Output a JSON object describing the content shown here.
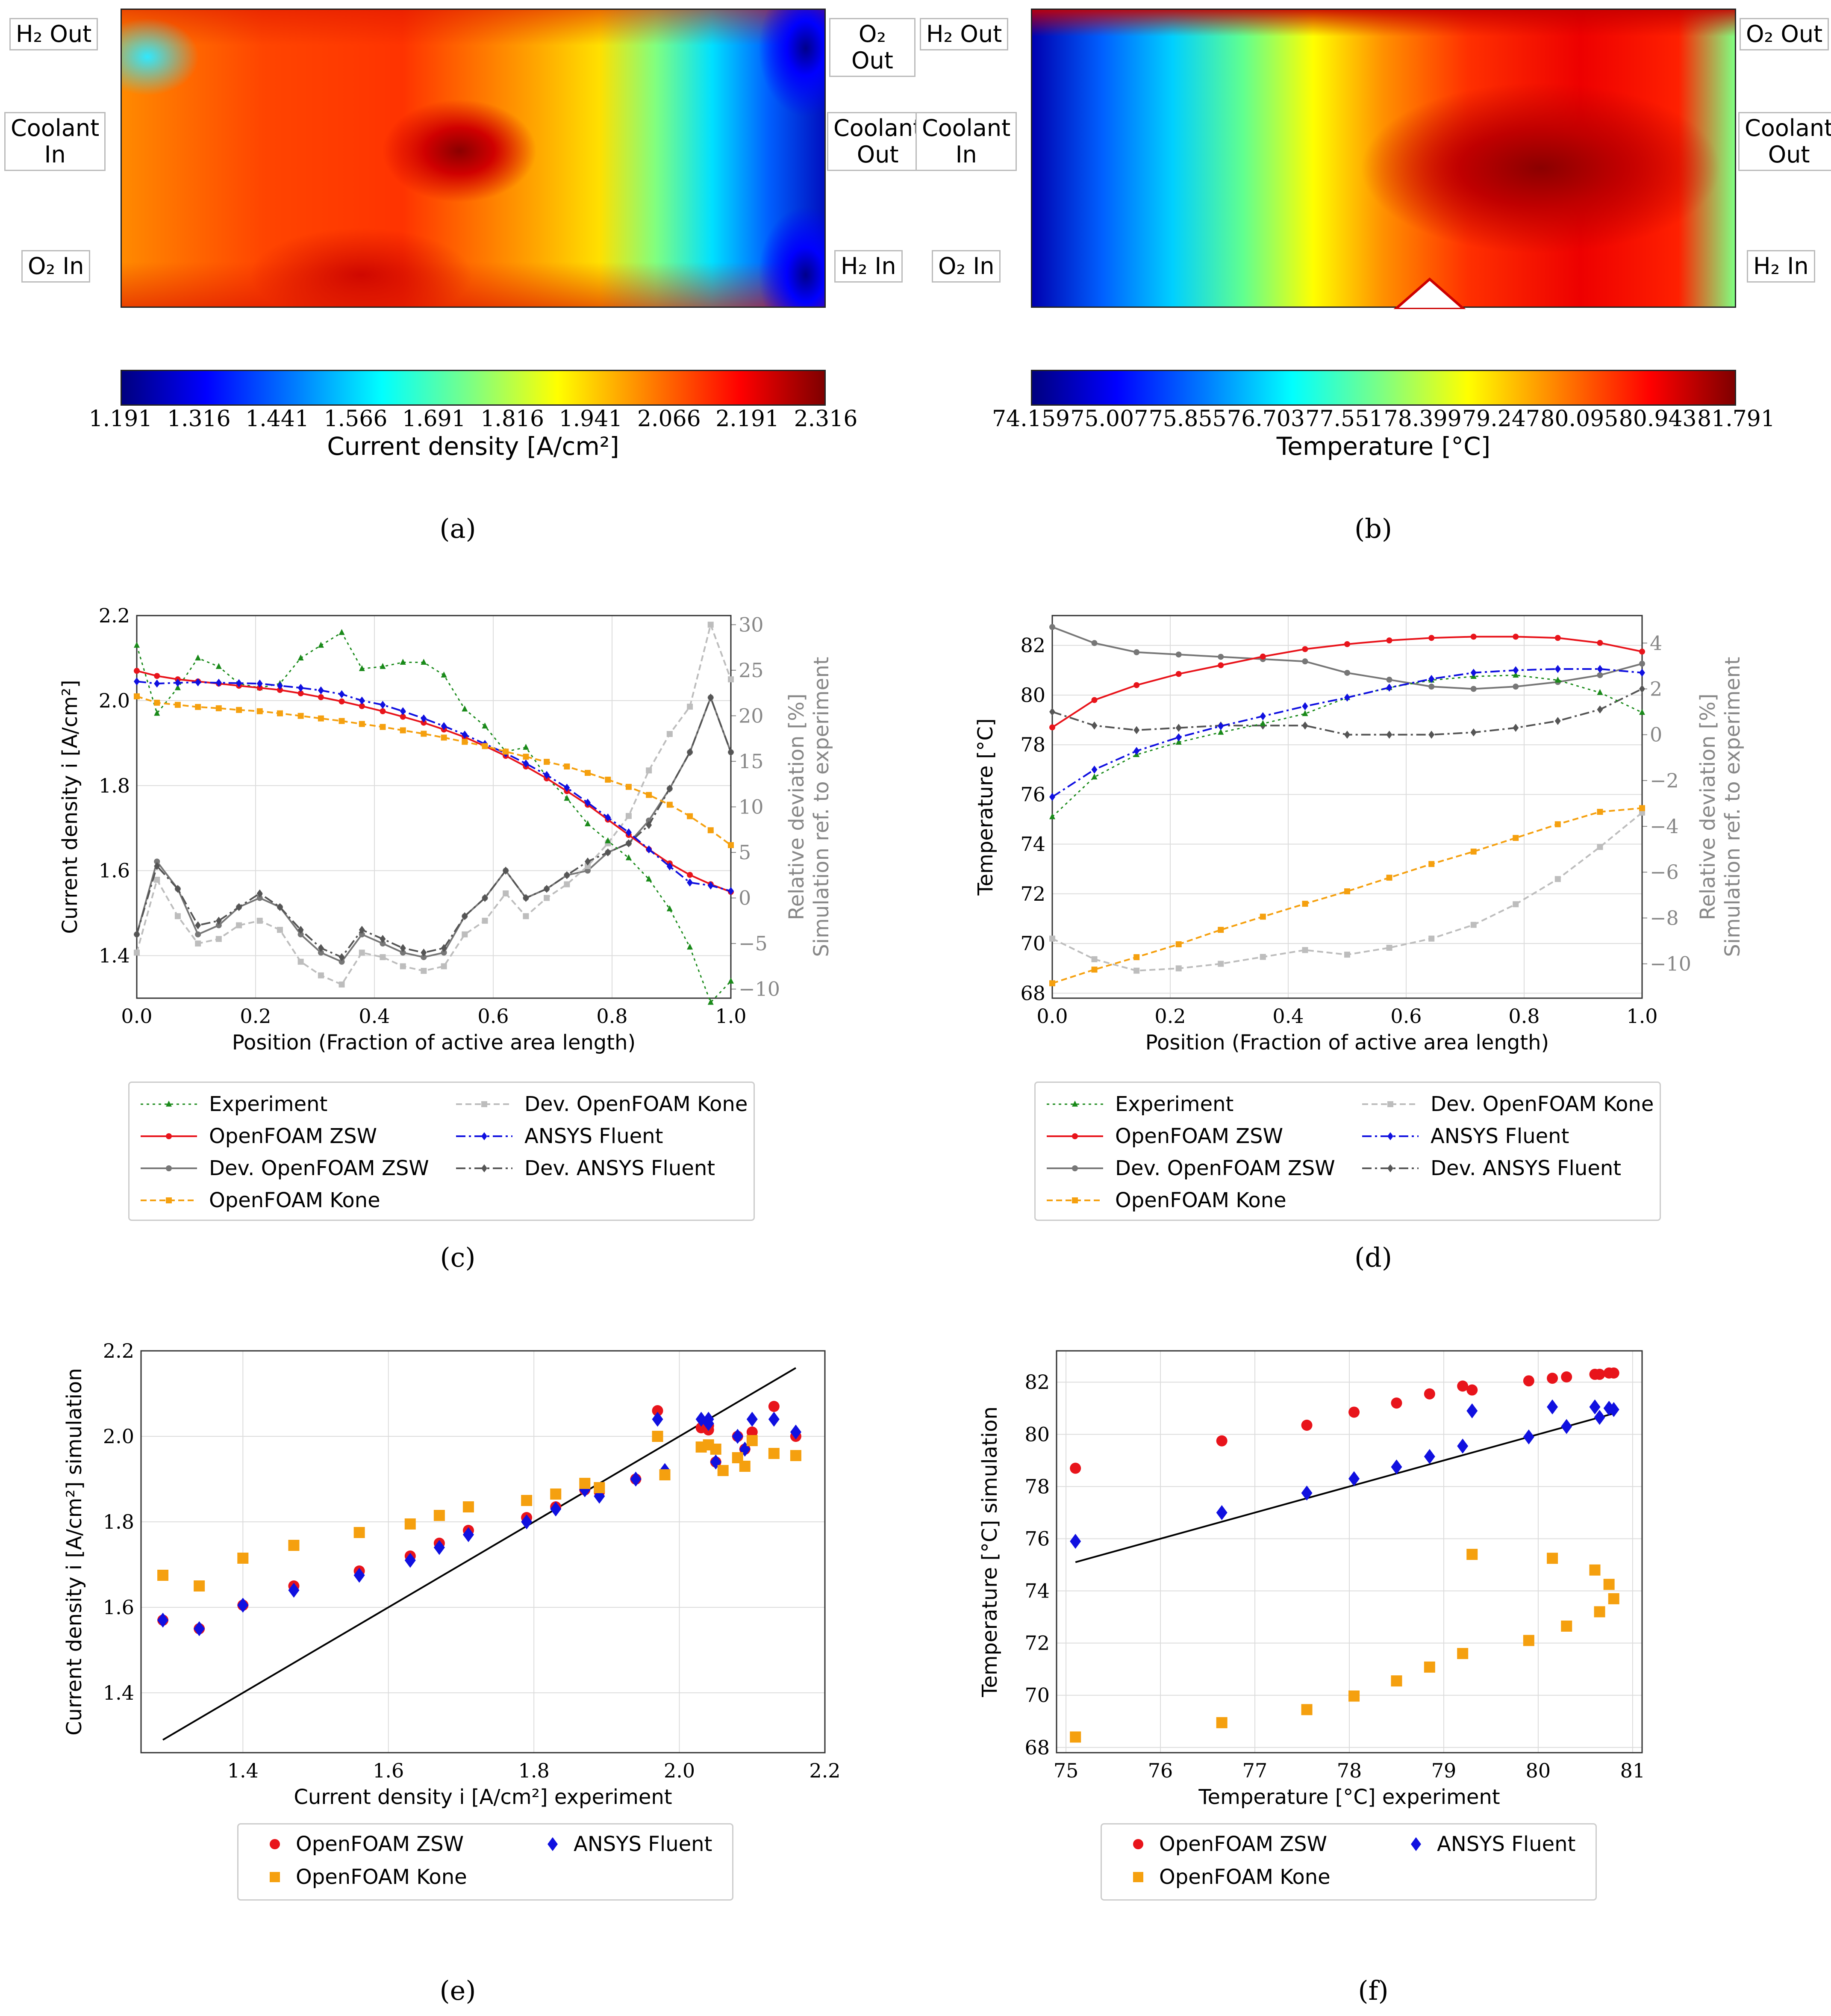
{
  "panels": {
    "a": "(a)",
    "b": "(b)",
    "c": "(c)",
    "d": "(d)",
    "e": "(e)",
    "f": "(f)"
  },
  "map_a": {
    "ports": {
      "h2_out": "H₂ Out",
      "coolant_in_1": "Coolant",
      "coolant_in_2": "In",
      "o2_in": "O₂ In",
      "o2_out": "O₂ Out",
      "coolant_out_1": "Coolant",
      "coolant_out_2": "Out",
      "h2_in": "H₂ In"
    },
    "colorbar": {
      "ticks": [
        "1.191",
        "1.316",
        "1.441",
        "1.566",
        "1.691",
        "1.816",
        "1.941",
        "2.066",
        "2.191",
        "2.316"
      ],
      "label": "Current density [A/cm²]"
    }
  },
  "map_b": {
    "ports": {
      "h2_out": "H₂ Out",
      "coolant_in_1": "Coolant",
      "coolant_in_2": "In",
      "o2_in": "O₂ In",
      "o2_out": "O₂ Out",
      "coolant_out_1": "Coolant",
      "coolant_out_2": "Out",
      "h2_in": "H₂ In"
    },
    "colorbar": {
      "ticks": [
        "74.159",
        "75.007",
        "75.855",
        "76.703",
        "77.551",
        "78.399",
        "79.247",
        "80.095",
        "80.943",
        "81.791"
      ],
      "label": "Temperature [°C]"
    }
  },
  "legend_full": {
    "experiment": "Experiment",
    "openfoam_zsw": "OpenFOAM ZSW",
    "dev_openfoam_zsw": "Dev. OpenFOAM ZSW",
    "openfoam_kone": "OpenFOAM Kone",
    "dev_openfoam_kone": "Dev. OpenFOAM Kone",
    "ansys_fluent": "ANSYS Fluent",
    "dev_ansys_fluent": "Dev. ANSYS Fluent"
  },
  "colors": {
    "experiment": "#1a8a1a",
    "openfoam_zsw": "#e8141b",
    "dev_openfoam_zsw": "#777777",
    "openfoam_kone": "#f5a00f",
    "dev_openfoam_kone": "#bdbdbd",
    "ansys_fluent": "#1010e0",
    "dev_ansys_fluent": "#555555"
  },
  "chart_data": [
    {
      "id": "c",
      "type": "line",
      "xlabel": "Position (Fraction of active area length)",
      "ylabel": "Current density i [A/cm²]",
      "y2label_1": "Relative deviation [%]",
      "y2label_2": "Simulation ref. to experiment",
      "xlim": [
        0,
        1
      ],
      "ylim": [
        1.3,
        2.2
      ],
      "y2lim": [
        -11,
        31
      ],
      "xticks": [
        0.0,
        0.2,
        0.4,
        0.6,
        0.8,
        1.0
      ],
      "xtick_labels": [
        "0.0",
        "0.2",
        "0.4",
        "0.6",
        "0.8",
        "1.0"
      ],
      "yticks": [
        1.4,
        1.6,
        1.8,
        2.0,
        2.2
      ],
      "ytick_labels": [
        "1.4",
        "1.6",
        "1.8",
        "2.0",
        "2.2"
      ],
      "y2ticks": [
        -10,
        -5,
        0,
        5,
        10,
        15,
        20,
        25,
        30
      ],
      "y2tick_labels": [
        "−10",
        "−5",
        "0",
        "5",
        "10",
        "15",
        "20",
        "25",
        "30"
      ],
      "x": [
        0.0,
        0.034,
        0.069,
        0.103,
        0.138,
        0.172,
        0.207,
        0.241,
        0.276,
        0.31,
        0.345,
        0.379,
        0.414,
        0.448,
        0.483,
        0.517,
        0.552,
        0.586,
        0.621,
        0.655,
        0.69,
        0.724,
        0.759,
        0.793,
        0.828,
        0.862,
        0.897,
        0.931,
        0.966,
        1.0
      ],
      "series": [
        {
          "key": "experiment",
          "axis": "y",
          "values": [
            2.13,
            1.97,
            2.03,
            2.1,
            2.08,
            2.04,
            2.03,
            2.04,
            2.1,
            2.13,
            2.16,
            2.075,
            2.08,
            2.09,
            2.09,
            2.06,
            1.98,
            1.94,
            1.88,
            1.89,
            1.82,
            1.77,
            1.71,
            1.67,
            1.63,
            1.58,
            1.51,
            1.42,
            1.29,
            1.34
          ]
        },
        {
          "key": "openfoam_zsw",
          "axis": "y",
          "values": [
            2.07,
            2.058,
            2.05,
            2.045,
            2.04,
            2.035,
            2.03,
            2.025,
            2.017,
            2.008,
            1.998,
            1.987,
            1.975,
            1.962,
            1.948,
            1.932,
            1.914,
            1.893,
            1.87,
            1.845,
            1.817,
            1.787,
            1.755,
            1.72,
            1.684,
            1.65,
            1.617,
            1.59,
            1.568,
            1.55
          ]
        },
        {
          "key": "ansys_fluent",
          "axis": "y",
          "values": [
            2.045,
            2.04,
            2.042,
            2.043,
            2.042,
            2.041,
            2.04,
            2.035,
            2.03,
            2.024,
            2.015,
            2.0,
            1.99,
            1.975,
            1.958,
            1.94,
            1.92,
            1.898,
            1.876,
            1.852,
            1.825,
            1.795,
            1.76,
            1.725,
            1.69,
            1.65,
            1.61,
            1.572,
            1.565,
            1.552
          ]
        },
        {
          "key": "openfoam_kone",
          "axis": "y",
          "values": [
            2.01,
            1.995,
            1.99,
            1.985,
            1.982,
            1.978,
            1.975,
            1.97,
            1.964,
            1.958,
            1.952,
            1.945,
            1.938,
            1.93,
            1.922,
            1.913,
            1.903,
            1.893,
            1.88,
            1.868,
            1.856,
            1.845,
            1.83,
            1.814,
            1.797,
            1.778,
            1.755,
            1.728,
            1.695,
            1.66
          ]
        },
        {
          "key": "dev_openfoam_zsw",
          "axis": "y2",
          "values": [
            -4,
            4,
            1,
            -4,
            -3,
            -1,
            0,
            -1,
            -4,
            -6,
            -7,
            -4,
            -5,
            -6,
            -6.5,
            -6,
            -2,
            0,
            3,
            0,
            1,
            2.5,
            3,
            5,
            6,
            8.5,
            12,
            16,
            22,
            16
          ]
        },
        {
          "key": "dev_openfoam_kone",
          "axis": "y2",
          "values": [
            -6,
            2,
            -2,
            -5,
            -4.5,
            -3,
            -2.5,
            -3.5,
            -7,
            -8.5,
            -9.5,
            -6,
            -6.5,
            -7.5,
            -8,
            -7.5,
            -4,
            -2.5,
            0.5,
            -2,
            0,
            1.5,
            3.5,
            6,
            9,
            14,
            18,
            21,
            30,
            24
          ]
        },
        {
          "key": "dev_ansys_fluent",
          "axis": "y2",
          "values": [
            -4,
            3.5,
            1,
            -3,
            -2.5,
            -1,
            0.5,
            -1,
            -3.5,
            -5.5,
            -6.5,
            -3.5,
            -4.5,
            -5.5,
            -6,
            -5.5,
            -2,
            0,
            3,
            0,
            1,
            2.5,
            4,
            5,
            6,
            8,
            12,
            16,
            22,
            16
          ]
        }
      ]
    },
    {
      "id": "d",
      "type": "line",
      "xlabel": "Position (Fraction of active area length)",
      "ylabel": "Temperature [°C]",
      "y2label_1": "Relative deviation [%]",
      "y2label_2": "Simulation ref. to experiment",
      "xlim": [
        0,
        1
      ],
      "ylim": [
        67.8,
        83.2
      ],
      "y2lim": [
        -11.5,
        5.2
      ],
      "xticks": [
        0.0,
        0.2,
        0.4,
        0.6,
        0.8,
        1.0
      ],
      "xtick_labels": [
        "0.0",
        "0.2",
        "0.4",
        "0.6",
        "0.8",
        "1.0"
      ],
      "yticks": [
        68,
        70,
        72,
        74,
        76,
        78,
        80,
        82
      ],
      "ytick_labels": [
        "68",
        "70",
        "72",
        "74",
        "76",
        "78",
        "80",
        "82"
      ],
      "y2ticks": [
        -10,
        -8,
        -6,
        -4,
        -2,
        0,
        2,
        4
      ],
      "y2tick_labels": [
        "−10",
        "−8",
        "−6",
        "−4",
        "−2",
        "0",
        "2",
        "4"
      ],
      "x": [
        0.0,
        0.0714,
        0.1429,
        0.2143,
        0.2857,
        0.3571,
        0.4286,
        0.5,
        0.5714,
        0.6429,
        0.7143,
        0.7857,
        0.8571,
        0.9286,
        1.0
      ],
      "series": [
        {
          "key": "experiment",
          "axis": "y",
          "values": [
            75.1,
            76.7,
            77.6,
            78.1,
            78.5,
            78.85,
            79.25,
            79.9,
            80.3,
            80.6,
            80.75,
            80.8,
            80.6,
            80.1,
            79.3
          ]
        },
        {
          "key": "openfoam_zsw",
          "axis": "y",
          "values": [
            78.7,
            79.8,
            80.4,
            80.85,
            81.2,
            81.55,
            81.85,
            82.05,
            82.2,
            82.3,
            82.35,
            82.35,
            82.3,
            82.1,
            81.75
          ]
        },
        {
          "key": "ansys_fluent",
          "axis": "y",
          "values": [
            75.9,
            77.0,
            77.75,
            78.3,
            78.75,
            79.15,
            79.55,
            79.9,
            80.3,
            80.65,
            80.9,
            81.0,
            81.05,
            81.05,
            80.9
          ]
        },
        {
          "key": "openfoam_kone",
          "axis": "y",
          "values": [
            68.4,
            68.95,
            69.45,
            69.97,
            70.55,
            71.08,
            71.6,
            72.1,
            72.65,
            73.2,
            73.7,
            74.25,
            74.8,
            75.3,
            75.45
          ]
        },
        {
          "key": "dev_openfoam_zsw",
          "axis": "y2",
          "values": [
            4.7,
            4.0,
            3.6,
            3.5,
            3.4,
            3.3,
            3.2,
            2.7,
            2.4,
            2.1,
            2.0,
            2.1,
            2.3,
            2.6,
            3.1
          ]
        },
        {
          "key": "dev_openfoam_kone",
          "axis": "y2",
          "values": [
            -8.9,
            -9.8,
            -10.3,
            -10.2,
            -10.0,
            -9.7,
            -9.4,
            -9.6,
            -9.3,
            -8.9,
            -8.3,
            -7.4,
            -6.3,
            -4.9,
            -3.4
          ]
        },
        {
          "key": "dev_ansys_fluent",
          "axis": "y2",
          "values": [
            1.0,
            0.4,
            0.2,
            0.3,
            0.4,
            0.4,
            0.4,
            0.0,
            0.0,
            0.0,
            0.1,
            0.3,
            0.6,
            1.1,
            2.0
          ]
        }
      ]
    },
    {
      "id": "e",
      "type": "scatter",
      "xlabel": "Current density i [A/cm²] experiment",
      "ylabel": "Current density i [A/cm²] simulation",
      "xlim": [
        1.26,
        2.2
      ],
      "ylim": [
        1.26,
        2.2
      ],
      "xticks": [
        1.4,
        1.6,
        1.8,
        2.0,
        2.2
      ],
      "xtick_labels": [
        "1.4",
        "1.6",
        "1.8",
        "2.0",
        "2.2"
      ],
      "yticks": [
        1.4,
        1.6,
        1.8,
        2.0,
        2.2
      ],
      "ytick_labels": [
        "1.4",
        "1.6",
        "1.8",
        "2.0",
        "2.2"
      ],
      "reference_line": [
        [
          1.29,
          1.29
        ],
        [
          2.16,
          2.16
        ]
      ],
      "series": [
        {
          "key": "openfoam_zsw",
          "x": [
            1.29,
            1.34,
            1.4,
            1.47,
            1.56,
            1.63,
            1.67,
            1.71,
            1.79,
            1.83,
            1.87,
            1.89,
            1.94,
            1.97,
            2.03,
            2.04,
            2.04,
            2.05,
            2.08,
            2.09,
            2.1,
            2.13,
            2.16
          ],
          "values": [
            1.57,
            1.55,
            1.605,
            1.65,
            1.685,
            1.72,
            1.75,
            1.78,
            1.81,
            1.835,
            1.875,
            1.87,
            1.9,
            2.06,
            2.02,
            2.025,
            2.015,
            1.94,
            2.0,
            1.97,
            2.01,
            2.07,
            2.0
          ]
        },
        {
          "key": "ansys_fluent",
          "x": [
            1.29,
            1.34,
            1.4,
            1.47,
            1.56,
            1.63,
            1.67,
            1.71,
            1.79,
            1.83,
            1.87,
            1.89,
            1.94,
            1.97,
            1.98,
            2.03,
            2.04,
            2.04,
            2.05,
            2.08,
            2.09,
            2.1,
            2.13,
            2.16
          ],
          "values": [
            1.57,
            1.55,
            1.605,
            1.64,
            1.675,
            1.71,
            1.74,
            1.77,
            1.8,
            1.83,
            1.875,
            1.86,
            1.9,
            2.04,
            1.92,
            2.04,
            2.04,
            2.03,
            1.94,
            2.0,
            1.97,
            2.04,
            2.04,
            2.01
          ]
        },
        {
          "key": "openfoam_kone",
          "x": [
            1.29,
            1.34,
            1.4,
            1.47,
            1.56,
            1.63,
            1.67,
            1.71,
            1.79,
            1.83,
            1.87,
            1.89,
            1.97,
            1.98,
            2.03,
            2.04,
            2.05,
            2.06,
            2.08,
            2.09,
            2.1,
            2.13,
            2.16
          ],
          "values": [
            1.675,
            1.65,
            1.715,
            1.745,
            1.775,
            1.795,
            1.815,
            1.835,
            1.85,
            1.865,
            1.89,
            1.88,
            2.0,
            1.91,
            1.975,
            1.98,
            1.97,
            1.92,
            1.95,
            1.93,
            1.99,
            1.96,
            1.955
          ]
        }
      ]
    },
    {
      "id": "f",
      "type": "scatter",
      "xlabel": "Temperature [°C] experiment",
      "ylabel": "Temperature [°C] simulation",
      "xlim": [
        74.9,
        81.1
      ],
      "ylim": [
        67.8,
        83.2
      ],
      "xticks": [
        75,
        76,
        77,
        78,
        79,
        80,
        81
      ],
      "xtick_labels": [
        "75",
        "76",
        "77",
        "78",
        "79",
        "80",
        "81"
      ],
      "yticks": [
        68,
        70,
        72,
        74,
        76,
        78,
        80,
        82
      ],
      "ytick_labels": [
        "68",
        "70",
        "72",
        "74",
        "76",
        "78",
        "80",
        "82"
      ],
      "reference_line": [
        [
          75.1,
          75.1
        ],
        [
          80.8,
          80.8
        ]
      ],
      "series": [
        {
          "key": "openfoam_zsw",
          "x": [
            75.1,
            76.65,
            77.55,
            78.05,
            78.5,
            78.85,
            79.2,
            79.3,
            79.9,
            80.15,
            80.3,
            80.6,
            80.65,
            80.75,
            80.8
          ],
          "values": [
            78.7,
            79.75,
            80.35,
            80.85,
            81.2,
            81.55,
            81.85,
            81.7,
            82.05,
            82.15,
            82.2,
            82.3,
            82.3,
            82.35,
            82.35
          ]
        },
        {
          "key": "ansys_fluent",
          "x": [
            75.1,
            76.65,
            77.55,
            78.05,
            78.5,
            78.85,
            79.2,
            79.3,
            79.9,
            80.15,
            80.3,
            80.6,
            80.65,
            80.75,
            80.8
          ],
          "values": [
            75.9,
            77.0,
            77.75,
            78.3,
            78.75,
            79.15,
            79.55,
            80.9,
            79.9,
            81.05,
            80.3,
            81.05,
            80.65,
            81.0,
            80.95
          ]
        },
        {
          "key": "openfoam_kone",
          "x": [
            75.1,
            76.65,
            77.55,
            78.05,
            78.5,
            78.85,
            79.2,
            79.3,
            79.9,
            80.15,
            80.3,
            80.6,
            80.65,
            80.75,
            80.8
          ],
          "values": [
            68.4,
            68.95,
            69.45,
            69.97,
            70.55,
            71.08,
            71.6,
            75.4,
            72.1,
            75.25,
            72.65,
            74.8,
            73.2,
            74.25,
            73.7
          ]
        }
      ]
    }
  ],
  "legend_scatter": {
    "openfoam_zsw": "OpenFOAM ZSW",
    "ansys_fluent": "ANSYS Fluent",
    "openfoam_kone": "OpenFOAM Kone"
  }
}
